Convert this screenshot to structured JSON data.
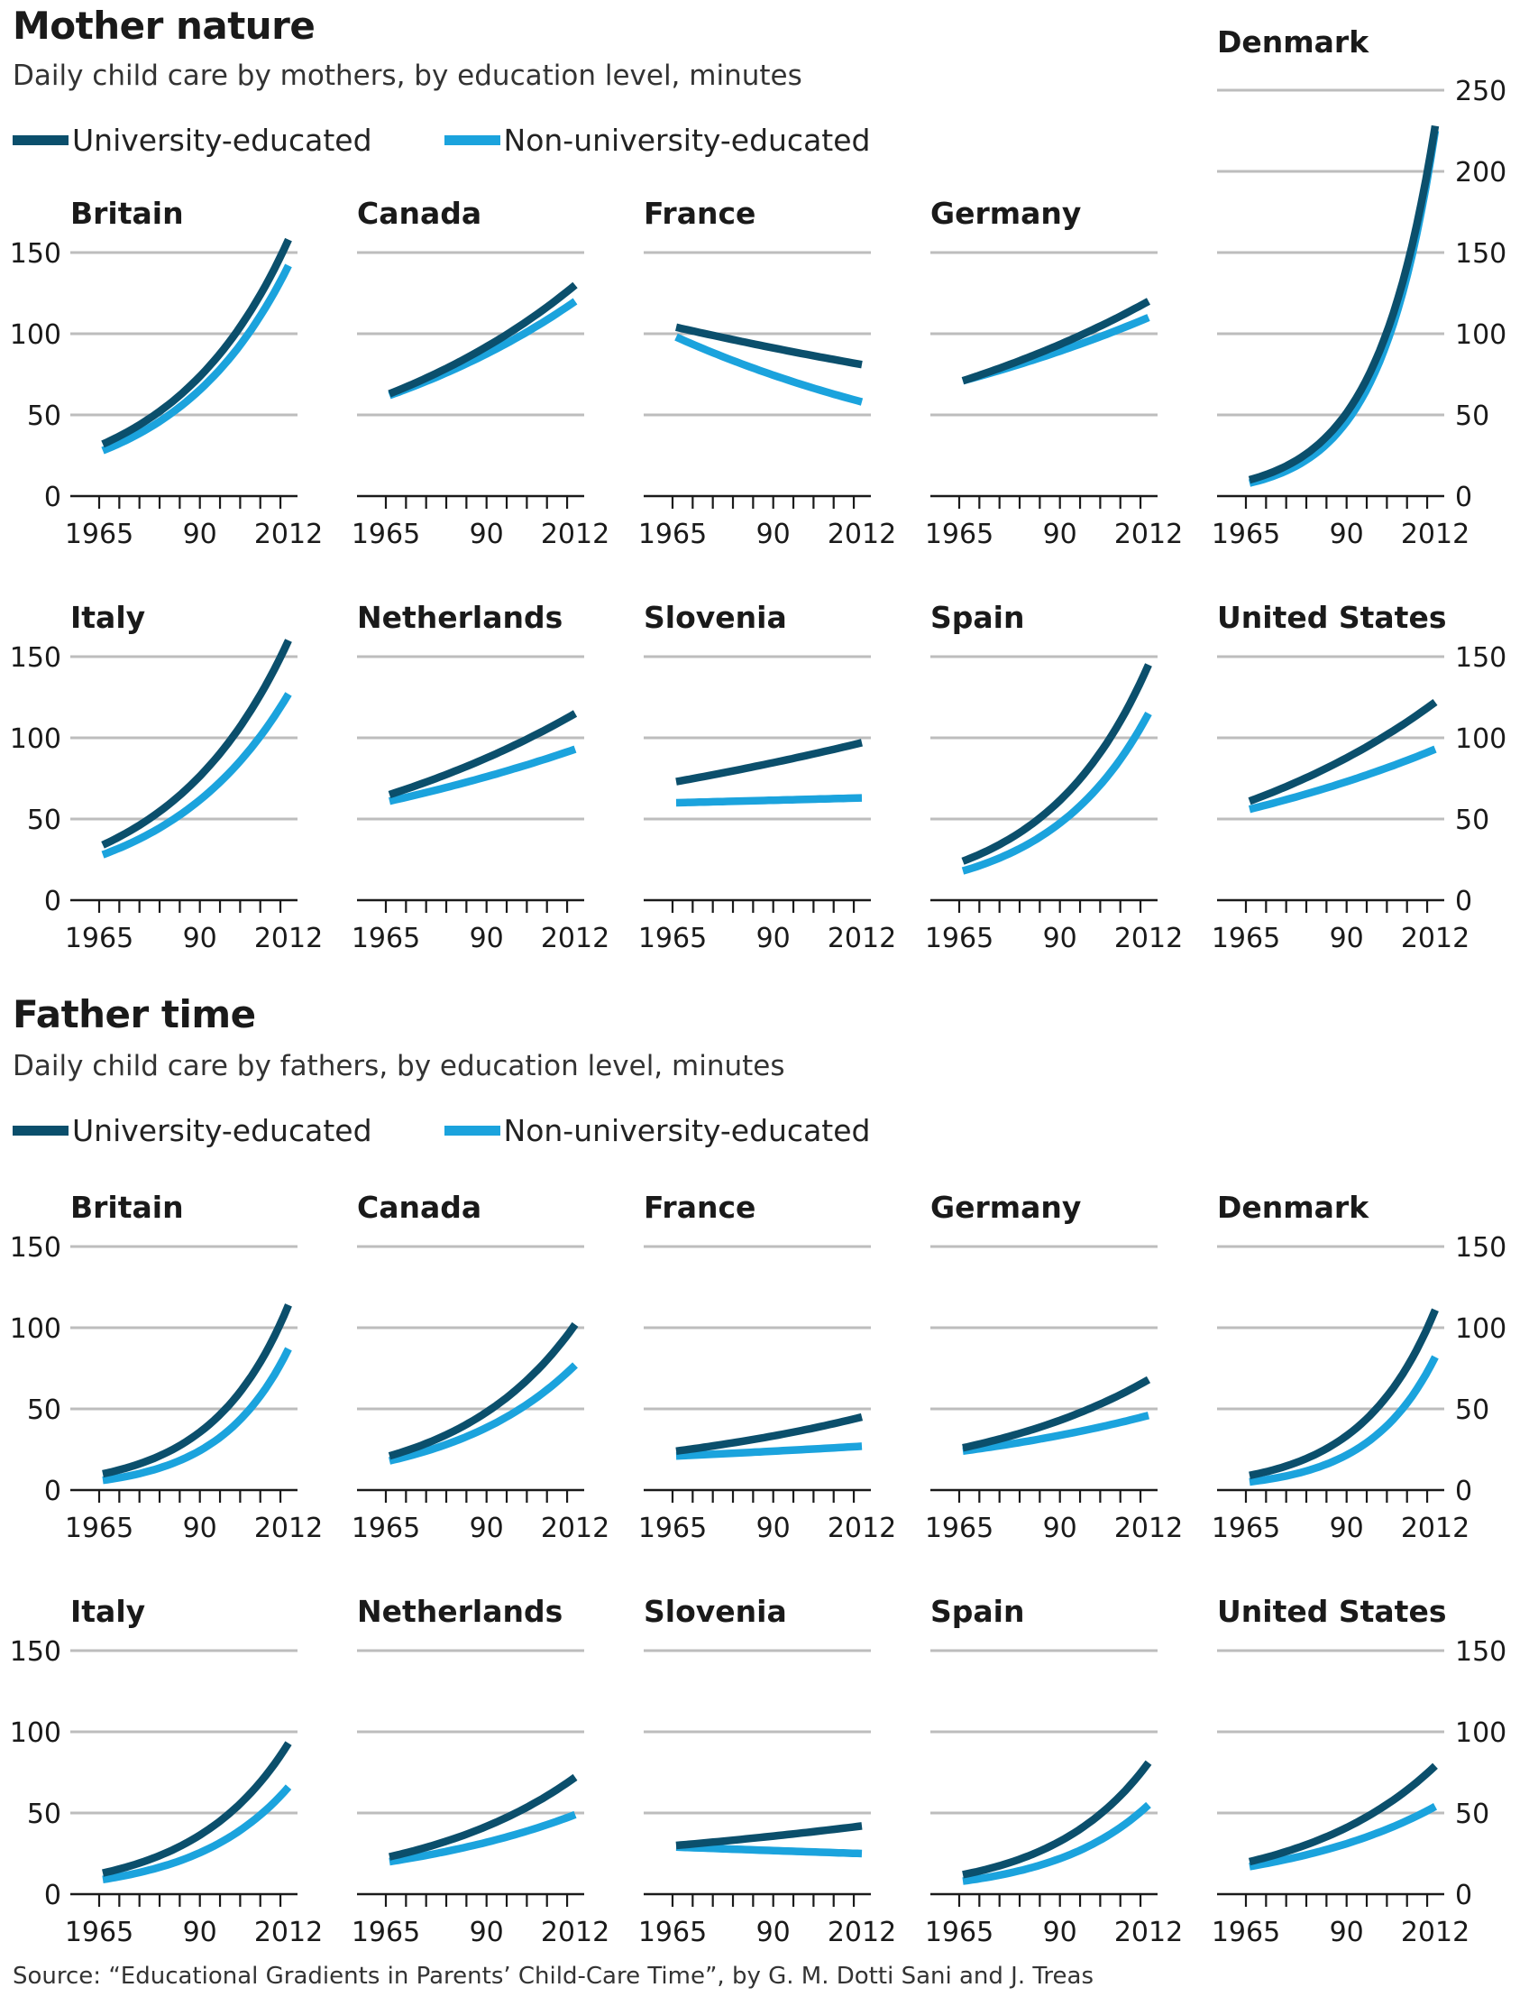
{
  "colors": {
    "university": "#0b4f6c",
    "non_university": "#1ba3dd",
    "grid": "#bdbdbd",
    "axis": "#1a1a1a"
  },
  "legend": {
    "university": "University-educated",
    "non_university": "Non-university-educated"
  },
  "mothers": {
    "title": "Mother nature",
    "subtitle": "Daily child care by mothers, by education level, minutes"
  },
  "fathers": {
    "title": "Father time",
    "subtitle": "Daily child care by fathers, by education level, minutes"
  },
  "source": "Source: “Educational Gradients in Parents’ Child-Care Time”, by G. M. Dotti Sani and J. Treas",
  "chart_data": [
    {
      "type": "line",
      "group": "mothers",
      "x_ticks": [
        "1965",
        "90",
        "2012"
      ],
      "x_range": [
        1965,
        2012
      ],
      "ylim": [
        0,
        150
      ],
      "ylim_denmark": [
        0,
        250
      ],
      "y_ticks": [
        0,
        50,
        100,
        150
      ],
      "y_ticks_denmark": [
        0,
        50,
        100,
        150,
        200,
        250
      ],
      "series_names": [
        "University-educated",
        "Non-university-educated"
      ],
      "panels": [
        {
          "country": "Britain",
          "university": [
            32,
            158
          ],
          "non_university": [
            28,
            142
          ]
        },
        {
          "country": "Canada",
          "university": [
            63,
            130
          ],
          "non_university": [
            62,
            120
          ]
        },
        {
          "country": "France",
          "university": [
            104,
            81
          ],
          "non_university": [
            98,
            58
          ]
        },
        {
          "country": "Germany",
          "university": [
            71,
            120
          ],
          "non_university": [
            71,
            110
          ]
        },
        {
          "country": "Denmark",
          "university": [
            10,
            228
          ],
          "non_university": [
            8,
            225
          ]
        },
        {
          "country": "Italy",
          "university": [
            34,
            160
          ],
          "non_university": [
            28,
            127
          ]
        },
        {
          "country": "Netherlands",
          "university": [
            65,
            115
          ],
          "non_university": [
            61,
            93
          ]
        },
        {
          "country": "Slovenia",
          "university": [
            73,
            97
          ],
          "non_university": [
            60,
            63
          ]
        },
        {
          "country": "Spain",
          "university": [
            24,
            145
          ],
          "non_university": [
            18,
            115
          ]
        },
        {
          "country": "United States",
          "university": [
            61,
            122
          ],
          "non_university": [
            56,
            93
          ]
        }
      ]
    },
    {
      "type": "line",
      "group": "fathers",
      "x_ticks": [
        "1965",
        "90",
        "2012"
      ],
      "x_range": [
        1965,
        2012
      ],
      "ylim": [
        0,
        150
      ],
      "y_ticks": [
        0,
        50,
        100,
        150
      ],
      "series_names": [
        "University-educated",
        "Non-university-educated"
      ],
      "panels": [
        {
          "country": "Britain",
          "university": [
            10,
            114
          ],
          "non_university": [
            6,
            87
          ]
        },
        {
          "country": "Canada",
          "university": [
            21,
            102
          ],
          "non_university": [
            18,
            77
          ]
        },
        {
          "country": "France",
          "university": [
            24,
            45
          ],
          "non_university": [
            21,
            27
          ]
        },
        {
          "country": "Germany",
          "university": [
            26,
            68
          ],
          "non_university": [
            24,
            46
          ]
        },
        {
          "country": "Denmark",
          "university": [
            9,
            111
          ],
          "non_university": [
            5,
            82
          ]
        },
        {
          "country": "Italy",
          "university": [
            13,
            93
          ],
          "non_university": [
            9,
            66
          ]
        },
        {
          "country": "Netherlands",
          "university": [
            23,
            72
          ],
          "non_university": [
            20,
            49
          ]
        },
        {
          "country": "Slovenia",
          "university": [
            30,
            42
          ],
          "non_university": [
            29,
            25
          ]
        },
        {
          "country": "Spain",
          "university": [
            12,
            81
          ],
          "non_university": [
            8,
            55
          ]
        },
        {
          "country": "United States",
          "university": [
            20,
            79
          ],
          "non_university": [
            17,
            54
          ]
        }
      ]
    }
  ]
}
